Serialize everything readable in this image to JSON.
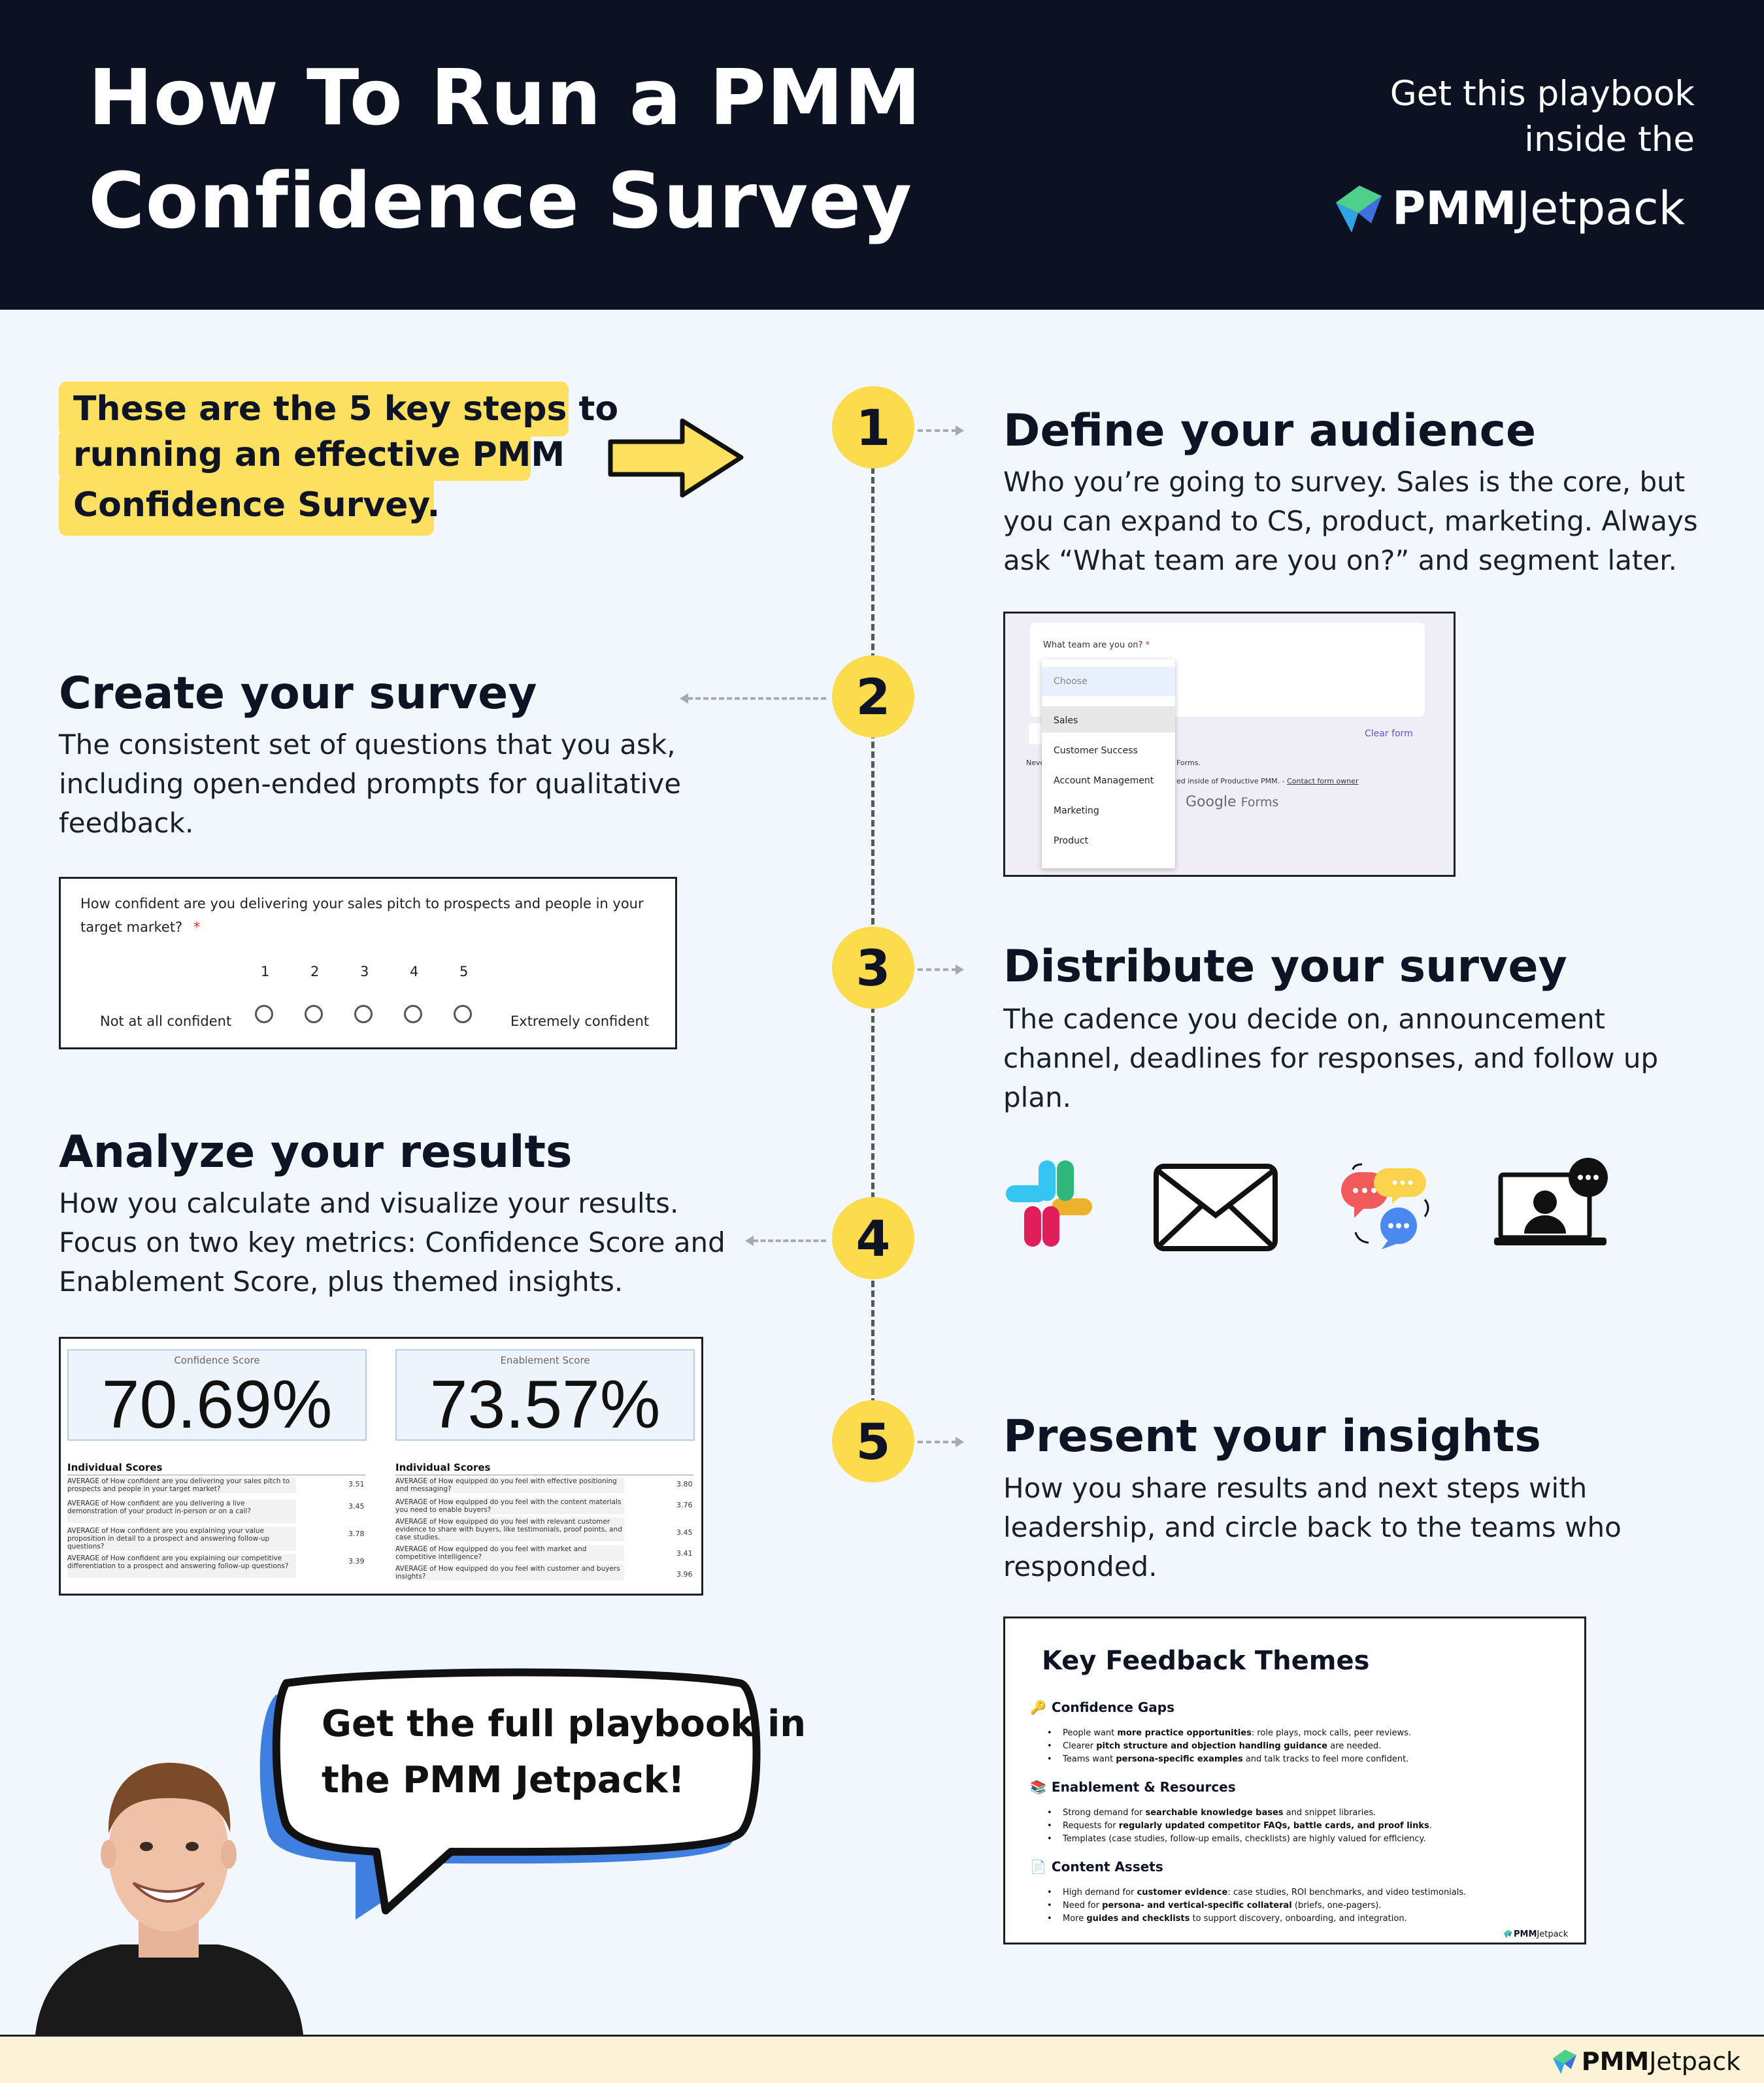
{
  "header": {
    "title_line1": "How To Run a PMM",
    "title_line2": "Confidence Survey",
    "get_line1": "Get this playbook",
    "get_line2": "inside the",
    "brand_part1": "PMM",
    "brand_part2": "Jetpack"
  },
  "intro": {
    "line1": "These are the 5 key steps to",
    "line2": "running an effective PMM",
    "line3": "Confidence Survey."
  },
  "steps": [
    {
      "number": "1",
      "title": "Define your audience",
      "desc": "Who you’re going to survey. Sales is the core, but you can expand to CS, product, marketing. Always ask “What team are you on?” and segment later."
    },
    {
      "number": "2",
      "title": "Create your survey",
      "desc": "The consistent set of questions that you ask, including open-ended prompts for qualitative feedback."
    },
    {
      "number": "3",
      "title": "Distribute your survey",
      "desc": "The cadence you decide on, announcement channel, deadlines for responses, and follow up plan."
    },
    {
      "number": "4",
      "title": "Analyze your results",
      "desc": "How you calculate and visualize your results. Focus on two key metrics: Confidence Score and Enablement Score, plus themed insights."
    },
    {
      "number": "5",
      "title": "Present your insights",
      "desc": "How you share results and next steps with leadership, and circle back to the teams who responded."
    }
  ],
  "form_shot": {
    "question": "What team are you on?",
    "required_mark": "*",
    "choose": "Choose",
    "options": [
      "Sales",
      "Customer Success",
      "Account Management",
      "Marketing",
      "Product"
    ],
    "clear_form": "Clear form",
    "never_frag": "Neve",
    "forms_frag": "Forms.",
    "created_inside": "ed inside of Productive PMM. -",
    "contact_owner": "Contact form owner",
    "google": "Google",
    "forms": "Forms"
  },
  "likert_shot": {
    "question": "How confident are you delivering your sales pitch to prospects and people in your target market?",
    "required_mark": "*",
    "scale": [
      "1",
      "2",
      "3",
      "4",
      "5"
    ],
    "low_label": "Not at all confident",
    "high_label": "Extremely confident"
  },
  "channel_icons": [
    "slack-icon",
    "email-icon",
    "chat-bubbles-icon",
    "video-call-icon"
  ],
  "scores_shot": {
    "confidence": {
      "label": "Confidence Score",
      "value": "70.69%",
      "heading": "Individual Scores",
      "rows": [
        {
          "text": "AVERAGE of How confident are you delivering your sales pitch to prospects and people in your target market?",
          "score": "3.51"
        },
        {
          "text": "AVERAGE of How confident are you delivering a live demonstration of your product in-person or on a call?",
          "score": "3.45"
        },
        {
          "text": "AVERAGE of How confident are you explaining your value proposition in detail to a prospect and answering follow-up questions?",
          "score": "3.78"
        },
        {
          "text": "AVERAGE of How confident are you explaining our competitive differentiation to a prospect and answering follow-up questions?",
          "score": "3.39"
        }
      ]
    },
    "enablement": {
      "label": "Enablement Score",
      "value": "73.57%",
      "heading": "Individual Scores",
      "rows": [
        {
          "text": "AVERAGE of How equipped do you feel with effective positioning and messaging?",
          "score": "3.80"
        },
        {
          "text": "AVERAGE of How equipped do you feel with the content materials you need to enable buyers?",
          "score": "3.76"
        },
        {
          "text": "AVERAGE of How equipped do you feel with relevant customer evidence to share with buyers, like testimonials, proof points, and case studies.",
          "score": "3.45"
        },
        {
          "text": "AVERAGE of How equipped do you feel with market and competitive intelligence?",
          "score": "3.41"
        },
        {
          "text": "AVERAGE of How equipped do you feel with customer and buyers insights?",
          "score": "3.96"
        }
      ]
    }
  },
  "themes_shot": {
    "title": "Key Feedback Themes",
    "sections": [
      {
        "name": "Confidence Gaps",
        "items": [
          [
            "People want ",
            "more practice opportunities",
            ": role plays, mock calls, peer reviews."
          ],
          [
            "Clearer ",
            "pitch structure and objection handling guidance",
            " are needed."
          ],
          [
            "Teams want ",
            "persona-specific examples",
            " and talk tracks to feel more confident."
          ]
        ]
      },
      {
        "name": "Enablement & Resources",
        "items": [
          [
            "Strong demand for ",
            "searchable knowledge bases",
            " and snippet libraries."
          ],
          [
            "Requests for ",
            "regularly updated competitor FAQs, battle cards, and proof links",
            "."
          ],
          [
            "Templates (case studies, follow-up emails, checklists) are highly valued for efficiency.",
            "",
            ""
          ]
        ]
      },
      {
        "name": "Content Assets",
        "items": [
          [
            "High demand for ",
            "customer evidence",
            ": case studies, ROI benchmarks, and video testimonials."
          ],
          [
            "Need for ",
            "persona- and vertical-specific collateral",
            " (briefs, one-pagers)."
          ],
          [
            "More ",
            "guides and checklists",
            " to support discovery, onboarding, and integration."
          ]
        ]
      }
    ],
    "brand_part1": "PMM",
    "brand_part2": "Jetpack"
  },
  "bubble": {
    "line1": "Get the full playbook in",
    "line2": "the PMM Jetpack!"
  },
  "footer": {
    "brand_part1": "PMM",
    "brand_part2": "Jetpack"
  },
  "colors": {
    "header_bg": "#0c1222",
    "page_bg": "#f1f7fc",
    "accent_yellow": "#fcdb4d",
    "bubble_blue": "#3f7fe0",
    "footer_bg": "#fcf3d6"
  }
}
